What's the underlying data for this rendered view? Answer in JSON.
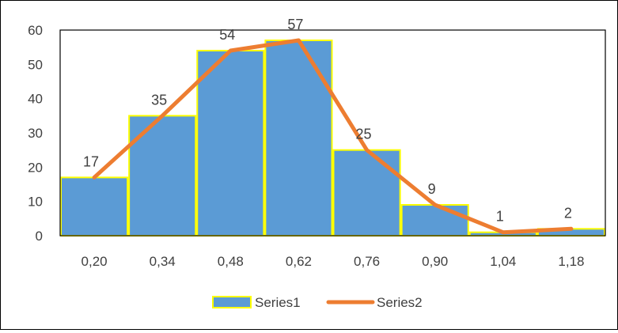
{
  "chart_data": {
    "type": "bar",
    "categories": [
      "0,20",
      "0,34",
      "0,48",
      "0,62",
      "0,76",
      "0,90",
      "1,04",
      "1,18"
    ],
    "series": [
      {
        "name": "Series1",
        "type": "bar",
        "values": [
          17,
          35,
          54,
          57,
          25,
          9,
          1,
          2
        ],
        "color": "#5b9bd5",
        "edge_color": "#ffff00"
      },
      {
        "name": "Series2",
        "type": "line",
        "values": [
          17,
          35,
          54,
          57,
          25,
          9,
          1,
          2
        ],
        "color": "#ed7d31"
      }
    ],
    "data_labels": [
      "17",
      "35",
      "54",
      "57",
      "25",
      "9",
      "1",
      "2"
    ],
    "title": "",
    "xlabel": "",
    "ylabel": "",
    "ylim": [
      0,
      60
    ],
    "yticks": [
      "0",
      "10",
      "20",
      "30",
      "40",
      "50",
      "60"
    ],
    "grid": false,
    "legend": "bottom"
  }
}
